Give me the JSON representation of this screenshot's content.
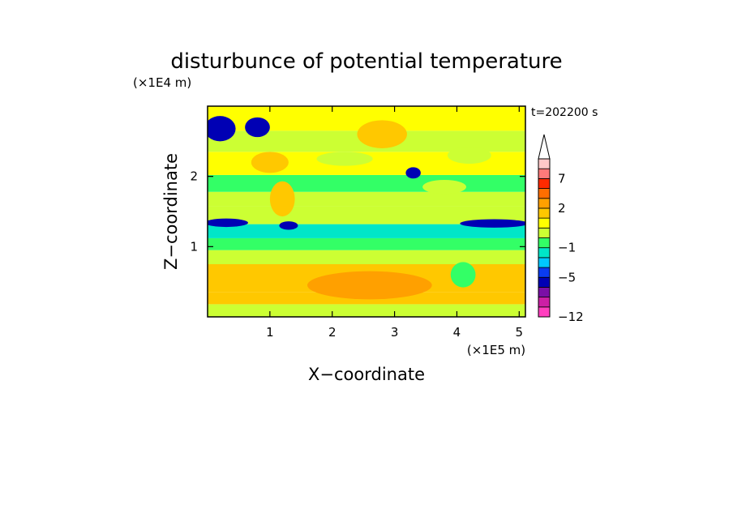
{
  "chart_data": {
    "type": "heatmap",
    "title": "disturbunce of potential temperature",
    "time_label": "t=202200 s",
    "xlabel": "X−coordinate",
    "ylabel": "Z−coordinate",
    "x_unit": "(×1E5 m)",
    "y_unit": "(×1E4 m)",
    "x_ticks": [
      "1",
      "2",
      "3",
      "4",
      "5"
    ],
    "x_tick_values": [
      1,
      2,
      3,
      4,
      5
    ],
    "y_ticks": [
      "1",
      "2"
    ],
    "y_tick_values": [
      1,
      2
    ],
    "xlim": [
      0,
      5.1
    ],
    "ylim": [
      0,
      3.0
    ],
    "colorbar": {
      "levels": [
        -12,
        -5,
        -1,
        2,
        7
      ],
      "level_labels": [
        "−12",
        "−5",
        "−1",
        "2",
        "7"
      ],
      "extend": "max",
      "colors": [
        "#ff3fbf",
        "#cc1fa5",
        "#7a0fa6",
        "#0000b4",
        "#0a3cf0",
        "#00c8ff",
        "#00e6c8",
        "#33ff66",
        "#ccff33",
        "#ffff00",
        "#ffc800",
        "#ffa000",
        "#ff6e00",
        "#ff2a00",
        "#ff7a7a",
        "#ffc8c8"
      ],
      "extend_color": "#ffffff"
    },
    "bands": [
      {
        "z": [
          0.0,
          0.18
        ],
        "value": 0.5
      },
      {
        "z": [
          0.18,
          0.35
        ],
        "value": 2.0
      },
      {
        "z": [
          0.35,
          0.75
        ],
        "value": 2.5
      },
      {
        "z": [
          0.75,
          0.95
        ],
        "value": 0.5
      },
      {
        "z": [
          0.95,
          1.12
        ],
        "value": -0.5
      },
      {
        "z": [
          1.12,
          1.32
        ],
        "value": -1.0
      },
      {
        "z": [
          1.32,
          1.58
        ],
        "value": 0.0
      },
      {
        "z": [
          1.58,
          1.78
        ],
        "value": 0.5
      },
      {
        "z": [
          1.78,
          2.02
        ],
        "value": -0.5
      },
      {
        "z": [
          2.02,
          2.35
        ],
        "value": 1.5
      },
      {
        "z": [
          2.35,
          2.65
        ],
        "value": 0.5
      },
      {
        "z": [
          2.65,
          3.0
        ],
        "value": 1.5
      }
    ],
    "blobs": [
      {
        "x": 0.3,
        "z": 1.34,
        "rx": 0.35,
        "rz": 0.06,
        "value": -4
      },
      {
        "x": 1.3,
        "z": 1.3,
        "rx": 0.15,
        "rz": 0.06,
        "value": -4
      },
      {
        "x": 4.6,
        "z": 1.33,
        "rx": 0.55,
        "rz": 0.06,
        "value": -4
      },
      {
        "x": 3.3,
        "z": 2.05,
        "rx": 0.12,
        "rz": 0.08,
        "value": -4
      },
      {
        "x": 0.2,
        "z": 2.68,
        "rx": 0.25,
        "rz": 0.18,
        "value": -4
      },
      {
        "x": 0.8,
        "z": 2.7,
        "rx": 0.2,
        "rz": 0.14,
        "value": -4
      },
      {
        "x": 2.8,
        "z": 2.6,
        "rx": 0.4,
        "rz": 0.2,
        "value": 2.8
      },
      {
        "x": 2.6,
        "z": 0.45,
        "rx": 1.0,
        "rz": 0.2,
        "value": 3.0
      },
      {
        "x": 0.6,
        "z": 0.55,
        "rx": 0.2,
        "rz": 0.12,
        "value": 2.8
      },
      {
        "x": 4.1,
        "z": 0.6,
        "rx": 0.2,
        "rz": 0.18,
        "value": -0.5
      },
      {
        "x": 4.2,
        "z": 2.3,
        "rx": 0.35,
        "rz": 0.12,
        "value": 0.5
      },
      {
        "x": 2.2,
        "z": 2.25,
        "rx": 0.45,
        "rz": 0.1,
        "value": 0.5
      },
      {
        "x": 1.2,
        "z": 1.68,
        "rx": 0.2,
        "rz": 0.25,
        "value": 2.5
      },
      {
        "x": 1.0,
        "z": 2.2,
        "rx": 0.3,
        "rz": 0.15,
        "value": 2.5
      },
      {
        "x": 3.8,
        "z": 1.85,
        "rx": 0.35,
        "rz": 0.1,
        "value": 0.5
      }
    ]
  }
}
